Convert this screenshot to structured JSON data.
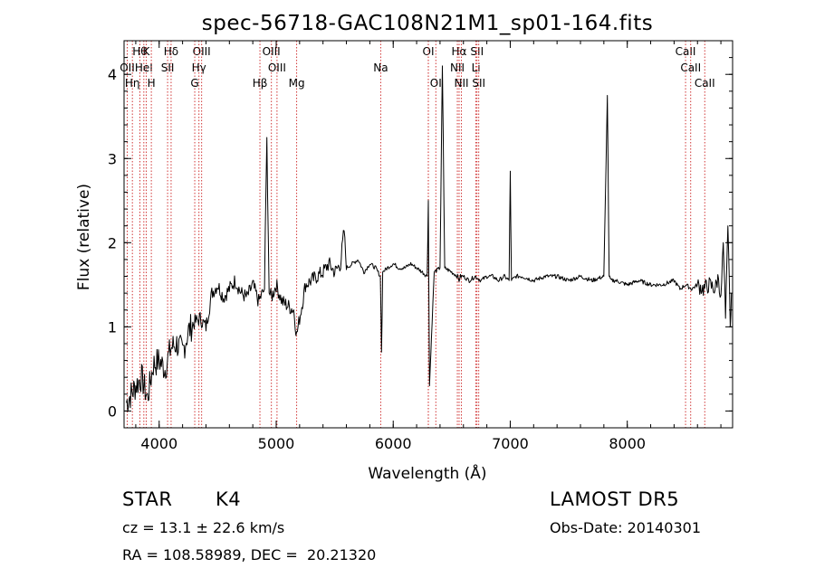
{
  "chart_data": {
    "type": "line",
    "title": "spec-56718-GAC108N21M1_sp01-164.fits",
    "xlabel": "Wavelength (Å)",
    "ylabel": "Flux (relative)",
    "xlim": [
      3700,
      8900
    ],
    "ylim": [
      -0.2,
      4.4
    ],
    "xticks": [
      4000,
      5000,
      6000,
      7000,
      8000
    ],
    "yticks": [
      0,
      1,
      2,
      3,
      4
    ],
    "grid": false,
    "line_color": "#000000",
    "marker_color": "#cc2222",
    "series": [
      {
        "values_desc": "relative flux",
        "x": [
          3720,
          3760,
          3800,
          3850,
          3900,
          3950,
          4000,
          4050,
          4100,
          4150,
          4200,
          4250,
          4300,
          4350,
          4400,
          4450,
          4500,
          4550,
          4600,
          4650,
          4700,
          4750,
          4800,
          4850,
          4900,
          4920,
          4940,
          4960,
          5000,
          5050,
          5100,
          5150,
          5175,
          5200,
          5250,
          5300,
          5350,
          5400,
          5450,
          5500,
          5550,
          5580,
          5600,
          5650,
          5700,
          5750,
          5800,
          5850,
          5890,
          5900,
          5910,
          5950,
          6000,
          6050,
          6100,
          6150,
          6200,
          6250,
          6290,
          6300,
          6310,
          6350,
          6400,
          6420,
          6440,
          6500,
          6550,
          6562,
          6575,
          6600,
          6650,
          6700,
          6750,
          6800,
          6850,
          6900,
          6950,
          6990,
          7000,
          7010,
          7050,
          7100,
          7200,
          7300,
          7400,
          7500,
          7600,
          7700,
          7800,
          7830,
          7845,
          7860,
          7900,
          8000,
          8100,
          8200,
          8300,
          8400,
          8450,
          8500,
          8550,
          8600,
          8650,
          8700,
          8750,
          8780,
          8800,
          8820,
          8840,
          8860,
          8880,
          8890
        ],
        "y": [
          0.1,
          0.2,
          0.3,
          0.4,
          0.15,
          0.55,
          0.6,
          0.5,
          0.75,
          0.8,
          0.7,
          0.95,
          1.05,
          1.1,
          1.0,
          1.4,
          1.5,
          1.35,
          1.45,
          1.55,
          1.4,
          1.35,
          1.5,
          1.3,
          1.45,
          3.25,
          1.4,
          1.35,
          1.5,
          1.3,
          1.25,
          1.2,
          0.9,
          1.1,
          1.5,
          1.55,
          1.6,
          1.65,
          1.75,
          1.65,
          1.75,
          2.15,
          1.7,
          1.75,
          1.8,
          1.65,
          1.75,
          1.7,
          1.6,
          0.7,
          1.65,
          1.7,
          1.75,
          1.7,
          1.7,
          1.75,
          1.7,
          1.65,
          1.6,
          2.5,
          0.3,
          1.65,
          1.7,
          4.1,
          1.7,
          1.65,
          1.6,
          1.55,
          1.6,
          1.6,
          1.55,
          1.6,
          1.55,
          1.6,
          1.6,
          1.55,
          1.6,
          1.55,
          2.85,
          1.55,
          1.6,
          1.6,
          1.55,
          1.6,
          1.6,
          1.55,
          1.6,
          1.55,
          1.6,
          3.75,
          1.6,
          1.55,
          1.55,
          1.5,
          1.55,
          1.5,
          1.5,
          1.55,
          1.45,
          1.5,
          1.45,
          1.5,
          1.45,
          1.5,
          1.45,
          1.6,
          1.3,
          2.0,
          1.1,
          2.2,
          1.0,
          1.4
        ]
      }
    ],
    "lines": [
      {
        "x": 3835,
        "label": "Hθ",
        "row": 0
      },
      {
        "x": 3889,
        "label": "K",
        "row": 0
      },
      {
        "x": 4102,
        "label": "Hδ",
        "row": 0
      },
      {
        "x": 4363,
        "label": "OIII",
        "row": 0
      },
      {
        "x": 4959,
        "label": "OIII",
        "row": 0
      },
      {
        "x": 6300,
        "label": "OI",
        "row": 0
      },
      {
        "x": 6563,
        "label": "Hα",
        "row": 0
      },
      {
        "x": 6716,
        "label": "SII",
        "row": 0
      },
      {
        "x": 8498,
        "label": "CaII",
        "row": 0
      },
      {
        "x": 3727,
        "label": "OII",
        "row": 1
      },
      {
        "x": 3869,
        "label": "HeI",
        "row": 1
      },
      {
        "x": 4072,
        "label": "SII",
        "row": 1
      },
      {
        "x": 4340,
        "label": "Hγ",
        "row": 1
      },
      {
        "x": 5007,
        "label": "OIII",
        "row": 1
      },
      {
        "x": 6548,
        "label": "NII",
        "row": 1
      },
      {
        "x": 6707,
        "label": "Li",
        "row": 1
      },
      {
        "x": 8542,
        "label": "CaII",
        "row": 1
      },
      {
        "x": 3771,
        "label": "Hη",
        "row": 2
      },
      {
        "x": 3933,
        "label": "H",
        "row": 2
      },
      {
        "x": 4304,
        "label": "G",
        "row": 2
      },
      {
        "x": 4861,
        "label": "Hβ",
        "row": 2
      },
      {
        "x": 5175,
        "label": "Mg",
        "row": 2
      },
      {
        "x": 6364,
        "label": "OI",
        "row": 2
      },
      {
        "x": 6583,
        "label": "NII",
        "row": 2
      },
      {
        "x": 6731,
        "label": "SII",
        "row": 2
      },
      {
        "x": 8662,
        "label": "CaII",
        "row": 2
      },
      {
        "x": 5893,
        "label": "Na",
        "row": 1
      },
      {
        "x": 6300,
        "label": "",
        "row": 0
      }
    ]
  },
  "info": {
    "class": "STAR",
    "subclass": "K4",
    "survey": "LAMOST DR5",
    "cz": "cz = 13.1 ± 22.6 km/s",
    "obs_date": "Obs-Date: 20140301",
    "coords": "RA = 108.58989, DEC =  20.21320"
  }
}
